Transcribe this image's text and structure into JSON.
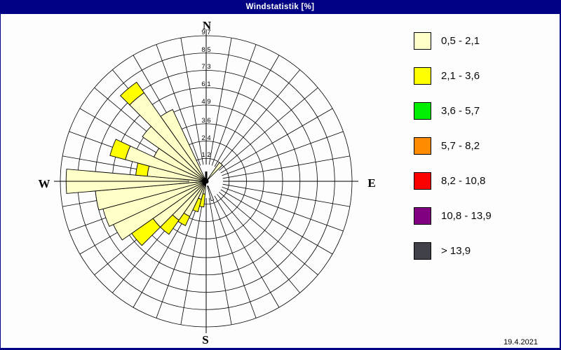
{
  "window": {
    "title": "Windstatistik [%]",
    "titlebar_color": "#000084"
  },
  "footer": {
    "date": "19.4.2021"
  },
  "compass": {
    "north": "N",
    "east": "E",
    "south": "S",
    "west": "W"
  },
  "legend": {
    "items": [
      {
        "label": "0,5 - 2,1",
        "color": "#FFFFC8"
      },
      {
        "label": "2,1 - 3,6",
        "color": "#FFFF00"
      },
      {
        "label": "3,6 - 5,7",
        "color": "#00EE00"
      },
      {
        "label": "5,7 - 8,2",
        "color": "#FF8C00"
      },
      {
        "label": "8,2 - 10,8",
        "color": "#FA0000"
      },
      {
        "label": "10,8 - 13,9",
        "color": "#800080"
      },
      {
        "label": "> 13,9",
        "color": "#404048"
      }
    ]
  },
  "chart_data": {
    "type": "windrose",
    "title": "Windstatistik [%]",
    "unit": "%",
    "sector_width_deg": 10,
    "max_value": 9.7,
    "ring_values": [
      1.2,
      2.4,
      3.6,
      4.9,
      6.1,
      7.3,
      8.5,
      9.7
    ],
    "ring_labels": [
      "1,2",
      "2,4",
      "3,6",
      "4,9",
      "6,1",
      "7,3",
      "8,5",
      "9,7"
    ],
    "classes_in_rose": [
      "0,5 - 2,1",
      "2,1 - 3,6"
    ],
    "class_colors": [
      "#FFFFC8",
      "#FFFF00"
    ],
    "bars": [
      {
        "dir_deg": 40,
        "stack": [
          1.2
        ]
      },
      {
        "dir_deg": 190,
        "stack": [
          0.5,
          1.4
        ]
      },
      {
        "dir_deg": 200,
        "stack": [
          0.9,
          1.8
        ]
      },
      {
        "dir_deg": 210,
        "stack": [
          2.3,
          3.0
        ]
      },
      {
        "dir_deg": 220,
        "stack": [
          2.9,
          4.1
        ]
      },
      {
        "dir_deg": 230,
        "stack": [
          4.1,
          5.9
        ]
      },
      {
        "dir_deg": 240,
        "stack": [
          6.7
        ]
      },
      {
        "dir_deg": 250,
        "stack": [
          7.0
        ]
      },
      {
        "dir_deg": 260,
        "stack": [
          7.3
        ]
      },
      {
        "dir_deg": 270,
        "stack": [
          9.3
        ]
      },
      {
        "dir_deg": 280,
        "stack": [
          3.7,
          4.5
        ]
      },
      {
        "dir_deg": 290,
        "stack": [
          5.4,
          6.5
        ]
      },
      {
        "dir_deg": 300,
        "stack": [
          3.6
        ]
      },
      {
        "dir_deg": 310,
        "stack": [
          5.0
        ]
      },
      {
        "dir_deg": 320,
        "stack": [
          7.1,
          8.0
        ]
      },
      {
        "dir_deg": 330,
        "stack": [
          5.1
        ]
      }
    ],
    "calm_marker": {
      "dir_deg": 162,
      "value": 1.0
    }
  }
}
